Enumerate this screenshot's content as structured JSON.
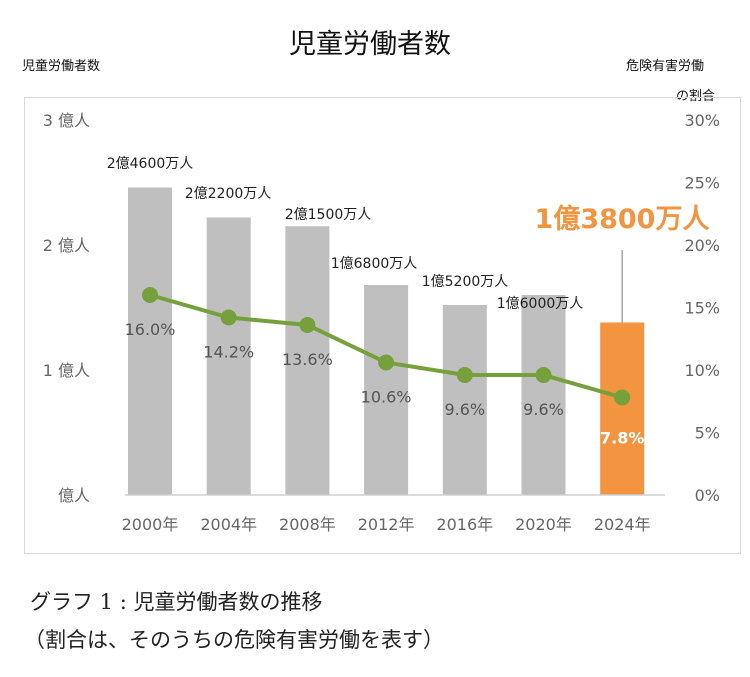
{
  "chart_data": {
    "type": "bar+line",
    "title": "児童労働者数",
    "ylabel_left": "児童労働者数",
    "ylabel_right": [
      "危険有害労働",
      "の割合"
    ],
    "categories": [
      "2000年",
      "2004年",
      "2008年",
      "2012年",
      "2016年",
      "2020年",
      "2024年"
    ],
    "left_axis": {
      "unit": "億人",
      "range": [
        0,
        3
      ],
      "ticks": [
        "億人",
        "1 億人",
        "2 億人",
        "3 億人"
      ]
    },
    "right_axis": {
      "unit": "%",
      "range": [
        0,
        30
      ],
      "ticks": [
        "0%",
        "5%",
        "10%",
        "15%",
        "20%",
        "25%",
        "30%"
      ]
    },
    "series": [
      {
        "type": "bar",
        "values": [
          2.46,
          2.22,
          2.15,
          1.68,
          1.52,
          1.6,
          1.38
        ],
        "labels": [
          "2億4600万人",
          "2億2200万人",
          "2億1500万人",
          "1億6800万人",
          "1億5200万人",
          "1億6000万人",
          "1億3800万人"
        ],
        "color": "#bfbfbf",
        "highlight_color": "#f39440"
      },
      {
        "type": "line",
        "values": [
          16.0,
          14.2,
          13.6,
          10.6,
          9.6,
          9.6,
          7.8
        ],
        "labels": [
          "16.0%",
          "14.2%",
          "13.6%",
          "10.6%",
          "9.6%",
          "9.6%",
          "7.8%"
        ],
        "color": "#76a03b"
      }
    ],
    "grid": false
  },
  "caption": {
    "line1": "グラフ 1 : 児童労働者数の推移",
    "line2": "（割合は、そのうちの危険有害労働を表す）"
  }
}
